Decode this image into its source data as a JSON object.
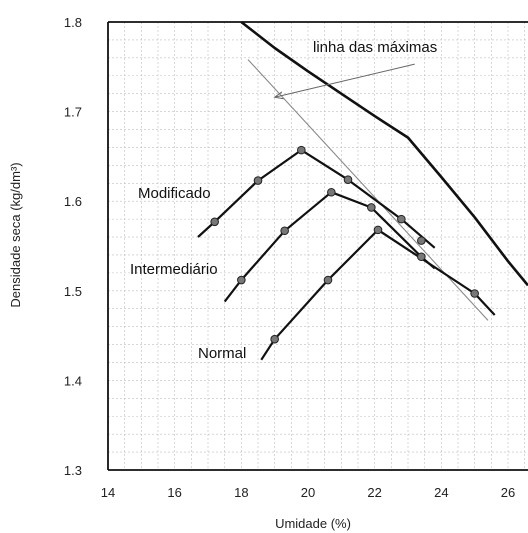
{
  "chart_data": {
    "type": "line",
    "title": "",
    "xlabel": "Umidade (%)",
    "ylabel": "Densidade seca (kg/dm³)",
    "xlim": [
      14,
      26.6
    ],
    "ylim": [
      1.3,
      1.8
    ],
    "xticks": [
      "14",
      "16",
      "18",
      "20",
      "22",
      "24",
      "26"
    ],
    "yticks": [
      "1.3",
      "1.4",
      "1.5",
      "1.6",
      "1.7",
      "1.8"
    ],
    "grid": true,
    "series": [
      {
        "name": "Modificado",
        "points": [
          [
            16.7,
            1.56
          ],
          [
            17.2,
            1.577
          ],
          [
            18.5,
            1.623
          ],
          [
            19.8,
            1.657
          ],
          [
            21.2,
            1.624
          ],
          [
            22.8,
            1.58
          ],
          [
            23.8,
            1.548
          ]
        ],
        "markers": [
          [
            17.2,
            1.577
          ],
          [
            18.5,
            1.623
          ],
          [
            19.8,
            1.657
          ],
          [
            21.2,
            1.624
          ],
          [
            22.8,
            1.58
          ],
          [
            23.4,
            1.556
          ]
        ]
      },
      {
        "name": "Intermediário",
        "points": [
          [
            17.5,
            1.488
          ],
          [
            18.0,
            1.512
          ],
          [
            19.3,
            1.567
          ],
          [
            20.7,
            1.61
          ],
          [
            21.9,
            1.593
          ],
          [
            23.4,
            1.538
          ],
          [
            23.8,
            1.525
          ]
        ],
        "markers": [
          [
            18.0,
            1.512
          ],
          [
            19.3,
            1.567
          ],
          [
            20.7,
            1.61
          ],
          [
            21.9,
            1.593
          ],
          [
            23.4,
            1.538
          ]
        ]
      },
      {
        "name": "Normal",
        "points": [
          [
            18.6,
            1.423
          ],
          [
            19.0,
            1.446
          ],
          [
            20.6,
            1.512
          ],
          [
            22.1,
            1.568
          ],
          [
            25.0,
            1.497
          ],
          [
            25.6,
            1.473
          ]
        ],
        "markers": [
          [
            19.0,
            1.446
          ],
          [
            20.6,
            1.512
          ],
          [
            22.1,
            1.568
          ],
          [
            25.0,
            1.497
          ]
        ]
      }
    ],
    "saturation_curve": {
      "points": [
        [
          18.0,
          1.8
        ],
        [
          19.0,
          1.771
        ],
        [
          20.0,
          1.745
        ],
        [
          21.0,
          1.72
        ],
        [
          22.0,
          1.695
        ],
        [
          23.0,
          1.671
        ],
        [
          24.0,
          1.627
        ],
        [
          25.0,
          1.582
        ],
        [
          26.0,
          1.533
        ],
        [
          26.6,
          1.506
        ]
      ]
    },
    "optimum_line": {
      "points": [
        [
          18.2,
          1.758
        ],
        [
          25.4,
          1.467
        ]
      ]
    },
    "annotations": {
      "maxima": "linha das máximas",
      "modificado": "Modificado",
      "intermediario": "Intermediário",
      "normal": "Normal"
    }
  }
}
